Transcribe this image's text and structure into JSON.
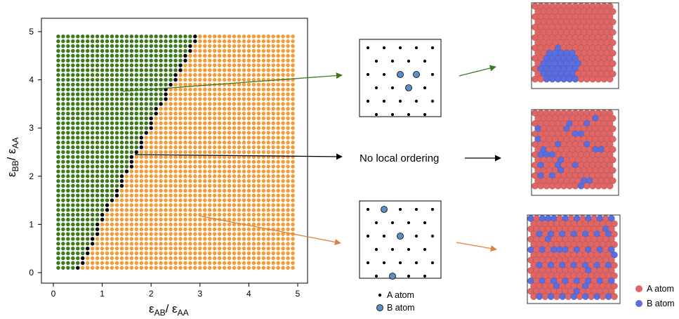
{
  "phase_map": {
    "xlabel_main": "ε",
    "xlabel_sub": "AB",
    "xlabel_rest": "/ ε",
    "xlabel_sub2": "AA",
    "ylabel_main": "ε",
    "ylabel_sub": "BB",
    "ylabel_rest": "/ ε",
    "ylabel_sub2": "AA",
    "x_ticks": [
      "0",
      "1",
      "2",
      "3",
      "4",
      "5"
    ],
    "y_ticks": [
      "0",
      "1",
      "2",
      "3",
      "4",
      "5"
    ],
    "xlim": [
      0,
      5
    ],
    "ylim": [
      0,
      5
    ],
    "grid_step": 0.1,
    "grid_min": 0.1,
    "grid_max": 4.9,
    "boundary_slope": 1.79,
    "boundary_intercept": 0.5,
    "colors": {
      "green_region": "#3c7a1e",
      "orange_region": "#f39c3a",
      "boundary": "#000000"
    }
  },
  "arrows": {
    "green_color": "#3c7a1e",
    "black_color": "#000000",
    "orange_color": "#e08040"
  },
  "middle_label": "No local ordering",
  "legend_small": {
    "a_atom": "A atom",
    "b_atom": "B atom",
    "b_color": "#5b8fc7"
  },
  "legend_right": {
    "a_atom": "A atom",
    "b_atom": "B atom",
    "a_color": "#e06666",
    "b_color": "#5a6ee0"
  }
}
